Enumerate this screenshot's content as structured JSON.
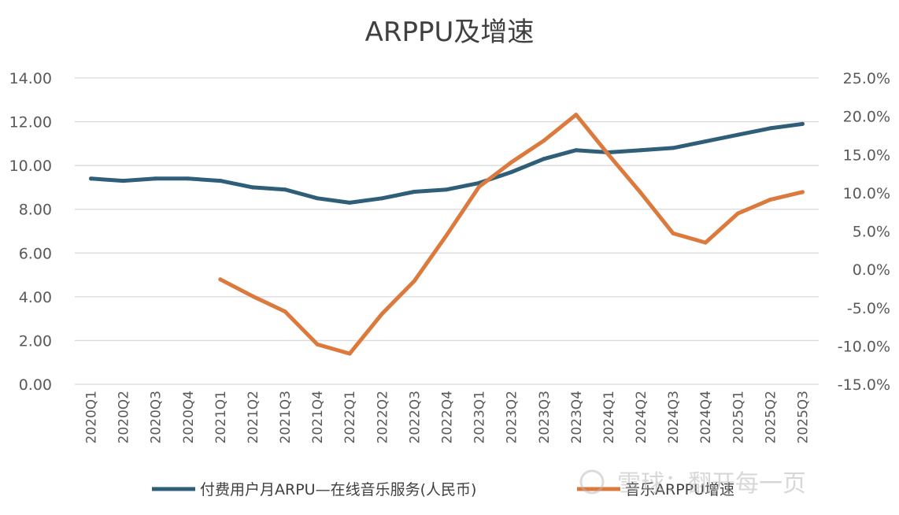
{
  "chart_data": {
    "type": "line",
    "title": "ARPPU及增速",
    "categories": [
      "2020Q1",
      "2020Q2",
      "2020Q3",
      "2020Q4",
      "2021Q1",
      "2021Q2",
      "2021Q3",
      "2021Q4",
      "2022Q1",
      "2022Q2",
      "2022Q3",
      "2022Q4",
      "2023Q1",
      "2023Q2",
      "2023Q3",
      "2023Q4",
      "2024Q1",
      "2024Q2",
      "2024Q3",
      "2024Q4",
      "2025Q1",
      "2025Q2",
      "2025Q3"
    ],
    "y_left": {
      "min": 0,
      "max": 14,
      "step": 2,
      "tick_labels": [
        "0.00",
        "2.00",
        "4.00",
        "6.00",
        "8.00",
        "10.00",
        "12.00",
        "14.00"
      ]
    },
    "y_right": {
      "min": -15,
      "max": 25,
      "step": 5,
      "tick_labels": [
        "-15.0%",
        "-10.0%",
        "-5.0%",
        "0.0%",
        "5.0%",
        "10.0%",
        "15.0%",
        "20.0%",
        "25.0%"
      ]
    },
    "grid": true,
    "legend_position": "bottom",
    "series": [
      {
        "name": "付费用户月ARPU—在线音乐服务(人民币)",
        "axis": "left",
        "color": "#2e5e78",
        "values": [
          9.4,
          9.3,
          9.4,
          9.4,
          9.3,
          9.0,
          8.9,
          8.5,
          8.3,
          8.5,
          8.8,
          8.9,
          9.2,
          9.7,
          10.3,
          10.7,
          10.6,
          10.7,
          10.8,
          11.1,
          11.4,
          11.7,
          11.9
        ]
      },
      {
        "name": "音乐ARPPU增速",
        "axis": "right",
        "color": "#dc7a3e",
        "values": [
          null,
          null,
          null,
          null,
          -1.3,
          -3.5,
          -5.5,
          -9.8,
          -11.0,
          -5.8,
          -1.5,
          4.5,
          10.8,
          14.0,
          16.8,
          20.2,
          15.0,
          10.0,
          4.7,
          3.5,
          7.3,
          9.1,
          10.1
        ]
      }
    ],
    "watermark": "雪球：翻开每一页"
  }
}
